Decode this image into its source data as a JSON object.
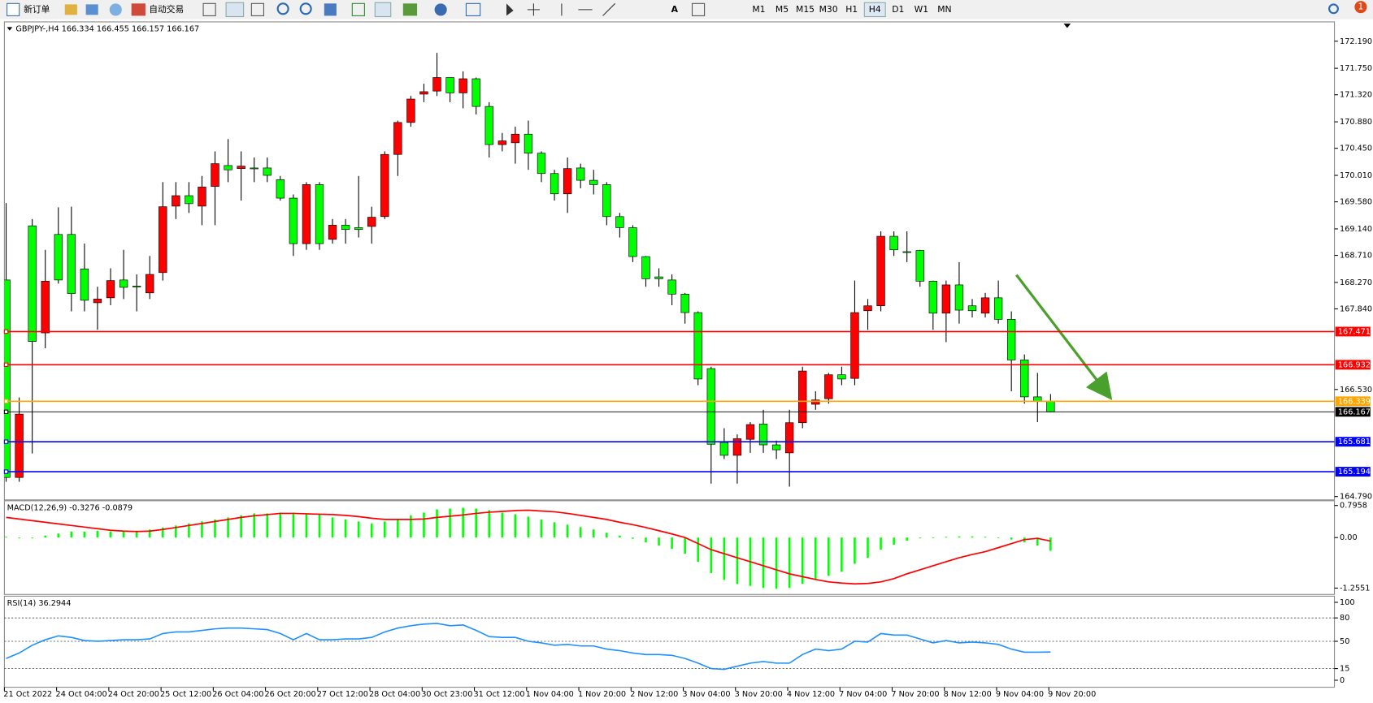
{
  "toolbar": {
    "new_order": "新订单",
    "auto_trading": "自动交易",
    "timeframes": [
      "M1",
      "M5",
      "M15",
      "M30",
      "H1",
      "H4",
      "D1",
      "W1",
      "MN"
    ],
    "active": "H4",
    "notifications": "1"
  },
  "chart_data": {
    "type": "candlestick",
    "title": "GBPJPY-,H4 166.334 166.455 166.157 166.167",
    "up_color": "#ff0000",
    "down_color": "#00ff00",
    "wick_color": "#000000",
    "categories": [
      "21 Oct 2022",
      null,
      null,
      null,
      "24 Oct 04:00",
      null,
      null,
      null,
      "24 Oct 20:00",
      null,
      null,
      null,
      "25 Oct 12:00",
      null,
      null,
      null,
      "26 Oct 04:00",
      null,
      null,
      null,
      "26 Oct 20:00",
      null,
      null,
      null,
      "27 Oct 12:00",
      null,
      null,
      null,
      "28 Oct 04:00",
      null,
      null,
      null,
      "30 Oct 23:00",
      null,
      null,
      null,
      "31 Oct 12:00",
      null,
      null,
      null,
      "1 Nov 04:00",
      null,
      null,
      null,
      "1 Nov 20:00",
      null,
      null,
      null,
      "2 Nov 12:00",
      null,
      null,
      null,
      "3 Nov 04:00",
      null,
      null,
      null,
      "3 Nov 20:00",
      null,
      null,
      null,
      "4 Nov 12:00",
      null,
      null,
      null,
      "7 Nov 04:00",
      null,
      null,
      null,
      "7 Nov 20:00",
      null,
      null,
      null,
      "8 Nov 12:00",
      null,
      null,
      null,
      "9 Nov 04:00",
      null,
      null,
      null,
      "9 Nov 20:00"
    ],
    "open": [
      168.31,
      165.1,
      169.19,
      167.45,
      169.05,
      169.05,
      168.49,
      167.94,
      168.02,
      168.31,
      168.21,
      168.1,
      168.43,
      169.51,
      169.68,
      169.51,
      169.83,
      170.17,
      170.12,
      170.13,
      170.13,
      169.94,
      169.64,
      168.9,
      169.86,
      168.97,
      169.2,
      169.16,
      169.18,
      169.34,
      170.35,
      170.87,
      171.33,
      171.38,
      171.6,
      171.35,
      171.58,
      171.13,
      170.51,
      170.54,
      170.68,
      170.37,
      170.04,
      169.71,
      170.13,
      169.93,
      169.86,
      169.34,
      169.16,
      168.69,
      168.36,
      168.31,
      168.08,
      167.78,
      166.87,
      165.67,
      165.46,
      165.72,
      165.97,
      165.63,
      165.5,
      165.99,
      166.29,
      166.38,
      166.77,
      166.71,
      167.81,
      167.89,
      169.02,
      168.77,
      168.79,
      168.29,
      167.77,
      168.23,
      167.89,
      167.77,
      168.02,
      167.67,
      167.01,
      166.41,
      166.334
    ],
    "high": [
      169.56,
      166.4,
      169.3,
      168.8,
      169.49,
      169.5,
      168.9,
      168.2,
      168.5,
      168.8,
      168.4,
      168.7,
      169.9,
      169.9,
      169.9,
      170.0,
      170.4,
      170.6,
      170.4,
      170.3,
      170.3,
      170.0,
      169.7,
      169.9,
      169.9,
      169.3,
      169.3,
      170.0,
      169.5,
      170.4,
      170.9,
      171.3,
      171.5,
      172.0,
      171.6,
      171.7,
      171.6,
      171.2,
      170.7,
      170.8,
      170.9,
      170.4,
      170.1,
      170.3,
      170.2,
      170.1,
      169.9,
      169.4,
      169.2,
      168.7,
      168.5,
      168.4,
      168.1,
      167.8,
      166.9,
      165.9,
      165.8,
      166.0,
      166.2,
      165.7,
      166.2,
      166.9,
      166.5,
      166.8,
      166.9,
      168.3,
      168.0,
      169.1,
      169.1,
      169.1,
      168.8,
      168.3,
      168.3,
      168.6,
      168.0,
      168.1,
      168.3,
      167.8,
      167.1,
      166.8,
      166.455
    ],
    "low": [
      165.03,
      165.03,
      165.49,
      167.2,
      168.25,
      167.8,
      167.8,
      167.5,
      167.9,
      168.0,
      167.8,
      168.0,
      168.3,
      169.3,
      169.4,
      169.2,
      169.2,
      169.9,
      169.6,
      169.9,
      169.9,
      169.6,
      168.7,
      168.8,
      168.8,
      168.9,
      168.9,
      169.0,
      168.9,
      169.3,
      170.0,
      170.8,
      171.2,
      171.3,
      171.2,
      171.1,
      171.0,
      170.3,
      170.4,
      170.2,
      170.1,
      169.9,
      169.6,
      169.4,
      169.8,
      169.7,
      169.2,
      169.0,
      168.6,
      168.2,
      168.2,
      167.9,
      167.6,
      166.6,
      165.0,
      165.4,
      165.0,
      165.5,
      165.5,
      165.4,
      164.95,
      165.9,
      166.2,
      166.3,
      166.6,
      166.6,
      167.5,
      167.8,
      168.7,
      168.6,
      168.2,
      167.5,
      167.3,
      167.6,
      167.7,
      167.7,
      167.6,
      166.5,
      166.3,
      166.0,
      166.157
    ],
    "close": [
      165.1,
      166.13,
      167.31,
      168.29,
      168.31,
      168.09,
      167.98,
      168.0,
      168.3,
      168.19,
      168.2,
      168.4,
      169.5,
      169.68,
      169.55,
      169.82,
      170.2,
      170.1,
      170.16,
      170.13,
      170.01,
      169.64,
      168.9,
      169.86,
      168.9,
      169.2,
      169.13,
      169.13,
      169.33,
      170.35,
      170.87,
      171.25,
      171.37,
      171.6,
      171.35,
      171.58,
      171.13,
      170.51,
      170.57,
      170.68,
      170.37,
      170.04,
      169.71,
      170.12,
      169.93,
      169.86,
      169.34,
      169.16,
      168.69,
      168.33,
      168.33,
      168.08,
      167.78,
      166.7,
      165.64,
      165.46,
      165.73,
      165.96,
      165.63,
      165.55,
      165.99,
      166.83,
      166.36,
      166.77,
      166.7,
      167.78,
      167.89,
      169.02,
      168.8,
      168.77,
      168.29,
      167.77,
      168.23,
      167.82,
      167.81,
      168.02,
      167.67,
      167.01,
      166.41,
      166.34,
      166.167
    ],
    "ylim": [
      164.75,
      172.49
    ],
    "yticks": [
      {
        "value": 172.19,
        "label": "172.190"
      },
      {
        "value": 171.75,
        "label": "171.750"
      },
      {
        "value": 171.32,
        "label": "171.320"
      },
      {
        "value": 170.88,
        "label": "170.880"
      },
      {
        "value": 170.45,
        "label": "170.450"
      },
      {
        "value": 170.01,
        "label": "170.010"
      },
      {
        "value": 169.58,
        "label": "169.580"
      },
      {
        "value": 169.14,
        "label": "169.140"
      },
      {
        "value": 168.71,
        "label": "168.710"
      },
      {
        "value": 168.27,
        "label": "168.270"
      },
      {
        "value": 167.84,
        "label": "167.840"
      },
      {
        "value": 166.53,
        "label": "166.530"
      },
      {
        "value": 164.79,
        "label": "164.790"
      }
    ],
    "levels": [
      {
        "value": 167.471,
        "color": "#ff0000"
      },
      {
        "value": 166.932,
        "color": "#ff0000"
      },
      {
        "value": 166.339,
        "color": "#ffa500"
      },
      {
        "value": 166.167,
        "color": "#000000"
      },
      {
        "value": 165.681,
        "color": "#0000ff"
      },
      {
        "value": 165.194,
        "color": "#0000ff"
      }
    ],
    "macd": {
      "title": "MACD(12,26,9) -0.3276 -0.0879",
      "hist_color": "#00ff00",
      "signal_color": "#ff0000",
      "histogram": [
        0.02,
        -0.02,
        -0.02,
        0.05,
        0.1,
        0.15,
        0.15,
        0.17,
        0.15,
        0.15,
        0.17,
        0.2,
        0.25,
        0.3,
        0.35,
        0.4,
        0.45,
        0.5,
        0.55,
        0.6,
        0.6,
        0.62,
        0.62,
        0.6,
        0.58,
        0.5,
        0.45,
        0.4,
        0.35,
        0.4,
        0.45,
        0.55,
        0.62,
        0.7,
        0.72,
        0.74,
        0.72,
        0.68,
        0.62,
        0.58,
        0.52,
        0.45,
        0.38,
        0.32,
        0.26,
        0.2,
        0.12,
        0.05,
        -0.03,
        -0.12,
        -0.2,
        -0.28,
        -0.4,
        -0.6,
        -0.88,
        -1.05,
        -1.15,
        -1.2,
        -1.25,
        -1.27,
        -1.25,
        -1.15,
        -1.05,
        -0.95,
        -0.85,
        -0.65,
        -0.5,
        -0.3,
        -0.18,
        -0.08,
        -0.02,
        0.0,
        0.02,
        0.03,
        0.03,
        0.02,
        0.0,
        -0.05,
        -0.12,
        -0.2,
        -0.3276
      ],
      "signal": [
        0.5,
        0.46,
        0.42,
        0.38,
        0.34,
        0.3,
        0.26,
        0.22,
        0.18,
        0.16,
        0.15,
        0.16,
        0.2,
        0.25,
        0.3,
        0.35,
        0.4,
        0.45,
        0.5,
        0.54,
        0.57,
        0.6,
        0.6,
        0.59,
        0.58,
        0.57,
        0.55,
        0.52,
        0.48,
        0.45,
        0.45,
        0.45,
        0.46,
        0.5,
        0.53,
        0.56,
        0.6,
        0.63,
        0.65,
        0.67,
        0.68,
        0.66,
        0.64,
        0.6,
        0.55,
        0.5,
        0.45,
        0.38,
        0.32,
        0.25,
        0.17,
        0.09,
        0.0,
        -0.15,
        -0.3,
        -0.4,
        -0.5,
        -0.6,
        -0.7,
        -0.8,
        -0.9,
        -0.97,
        -1.04,
        -1.1,
        -1.13,
        -1.15,
        -1.14,
        -1.1,
        -1.02,
        -0.9,
        -0.8,
        -0.7,
        -0.6,
        -0.5,
        -0.42,
        -0.35,
        -0.25,
        -0.15,
        -0.05,
        -0.02,
        -0.0879
      ],
      "ylim": [
        -1.39,
        0.87
      ],
      "yticks": [
        0.7958,
        {
          "value": 0,
          "label": "0.00"
        },
        -1.2551
      ]
    },
    "rsi": {
      "title": "RSI(14) 36.2944",
      "color": "#1e90ff",
      "values": [
        28,
        35,
        45,
        52,
        57,
        55,
        51,
        50,
        51,
        52,
        52,
        53,
        60,
        62,
        62,
        64,
        66,
        67,
        67,
        66,
        65,
        60,
        52,
        60,
        52,
        52,
        53,
        53,
        55,
        62,
        67,
        70,
        72,
        73,
        70,
        71,
        64,
        56,
        55,
        55,
        50,
        48,
        45,
        46,
        44,
        44,
        40,
        38,
        35,
        33,
        33,
        32,
        28,
        22,
        15,
        14,
        18,
        22,
        24,
        22,
        22,
        33,
        40,
        38,
        40,
        50,
        49,
        60,
        58,
        58,
        53,
        48,
        51,
        48,
        49,
        48,
        46,
        40,
        36,
        36,
        36.2944
      ],
      "ylim": [
        -6.7,
        104.5
      ],
      "yticks": [
        100,
        80,
        50,
        15,
        0
      ]
    }
  }
}
